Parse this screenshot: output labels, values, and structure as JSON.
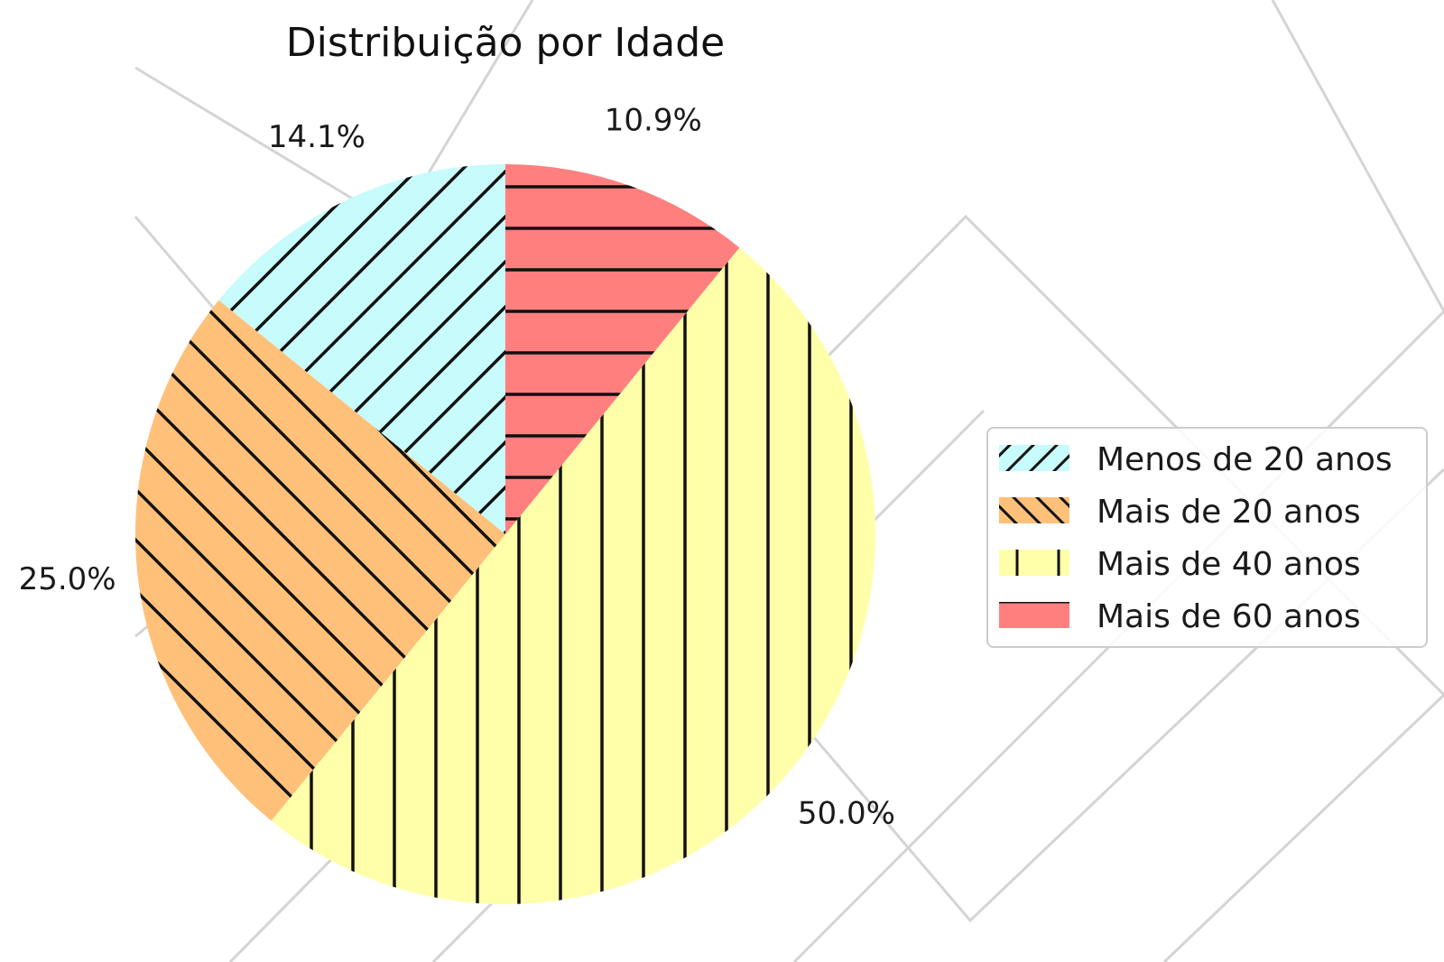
{
  "chart_data": {
    "type": "pie",
    "title": "Distribuição por Idade",
    "start_angle_deg": 90,
    "direction": "clockwise",
    "legend_position": "right",
    "slices": [
      {
        "label": "Mais de 60 anos",
        "value": 10.9,
        "pct_label": "10.9%",
        "color": "#ff7f7f",
        "hatch": "horizontal"
      },
      {
        "label": "Mais de 40 anos",
        "value": 50.0,
        "pct_label": "50.0%",
        "color": "#ffffaa",
        "hatch": "vertical"
      },
      {
        "label": "Mais de 20 anos",
        "value": 25.0,
        "pct_label": "25.0%",
        "color": "#ffc07a",
        "hatch": "backslash"
      },
      {
        "label": "Menos de 20 anos",
        "value": 14.1,
        "pct_label": "14.1%",
        "color": "#c8fbfb",
        "hatch": "slash"
      }
    ],
    "legend": [
      {
        "label": "Menos de 20 anos",
        "color": "#c8fbfb",
        "hatch": "slash"
      },
      {
        "label": "Mais de 20 anos",
        "color": "#ffc07a",
        "hatch": "backslash"
      },
      {
        "label": "Mais de 40 anos",
        "color": "#ffffaa",
        "hatch": "vertical"
      },
      {
        "label": "Mais de 60 anos",
        "color": "#ff7f7f",
        "hatch": "horizontal"
      }
    ]
  }
}
